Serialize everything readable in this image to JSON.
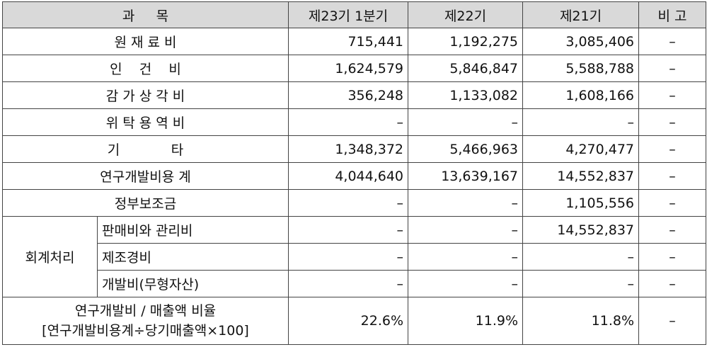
{
  "headers": {
    "item": "과     목",
    "q1": "제23기 1분기",
    "p22": "제22기",
    "p21": "제21기",
    "note": "비 고"
  },
  "rows": {
    "raw_materials": {
      "label": "원 재 료 비",
      "q1": "715,441",
      "p22": "1,192,275",
      "p21": "3,085,406",
      "note": "–"
    },
    "labor": {
      "label": "인    건    비",
      "q1": "1,624,579",
      "p22": "5,846,847",
      "p21": "5,588,788",
      "note": "–"
    },
    "depreciation": {
      "label": "감 가 상 각 비",
      "q1": "356,248",
      "p22": "1,133,082",
      "p21": "1,608,166",
      "note": "–"
    },
    "outsourcing": {
      "label": "위 탁 용 역 비",
      "q1": "–",
      "p22": "–",
      "p21": "–",
      "note": "–"
    },
    "other": {
      "label": "기            타",
      "q1": "1,348,372",
      "p22": "5,466,963",
      "p21": "4,270,477",
      "note": "–"
    },
    "rd_total": {
      "label": "연구개발비용 계",
      "q1": "4,044,640",
      "p22": "13,639,167",
      "p21": "14,552,837",
      "note": "–"
    },
    "subsidy": {
      "label": "정부보조금",
      "q1": "–",
      "p22": "–",
      "p21": "1,105,556",
      "note": "–"
    }
  },
  "accounting": {
    "group_label": "회계처리",
    "sga": {
      "label": "판매비와 관리비",
      "q1": "–",
      "p22": "–",
      "p21": "14,552,837",
      "note": "–"
    },
    "manufacturing": {
      "label": "제조경비",
      "q1": "–",
      "p22": "–",
      "p21": "–",
      "note": "–"
    },
    "dev_cost": {
      "label": "개발비(무형자산)",
      "q1": "–",
      "p22": "–",
      "p21": "–",
      "note": "–"
    }
  },
  "ratio": {
    "label_line1": "연구개발비 / 매출액 비율",
    "label_line2": "[연구개발비용계÷당기매출액×100]",
    "q1": "22.6%",
    "p22": "11.9%",
    "p21": "11.8%",
    "note": "–"
  }
}
